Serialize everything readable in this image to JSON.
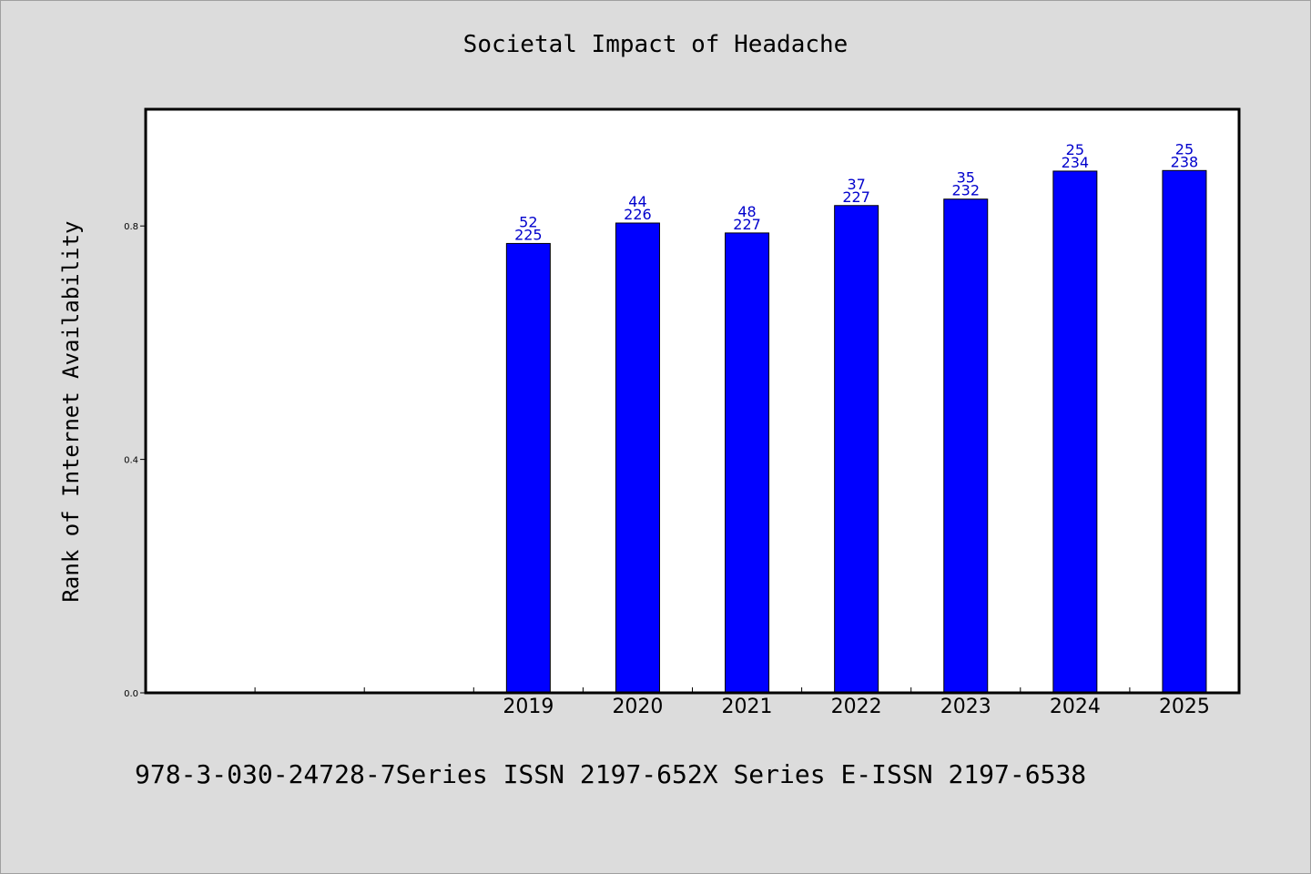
{
  "chart_data": {
    "type": "bar",
    "title": "Societal Impact of Headache",
    "ylabel": "Rank of Internet Availability",
    "xlabel": "",
    "ylim": [
      0,
      1.0
    ],
    "yticks": [
      "0.0",
      "0.4",
      "0.8"
    ],
    "ytick_values": [
      0.0,
      0.4,
      0.8
    ],
    "categories": [
      "",
      "",
      "",
      "2019",
      "2020",
      "2021",
      "2022",
      "2023",
      "2024",
      "2025"
    ],
    "values": [
      null,
      null,
      null,
      0.77,
      0.805,
      0.788,
      0.835,
      0.846,
      0.894,
      0.895
    ],
    "label_top": [
      null,
      null,
      null,
      "52",
      "44",
      "48",
      "37",
      "35",
      "25",
      "25"
    ],
    "label_bottom": [
      null,
      null,
      null,
      "225",
      "226",
      "227",
      "227",
      "232",
      "234",
      "238"
    ],
    "grid": false,
    "bar_color": "#0000ff",
    "label_color": "#0000cc"
  },
  "footer": "978-3-030-24728-7Series ISSN 2197-652X Series E-ISSN 2197-6538"
}
